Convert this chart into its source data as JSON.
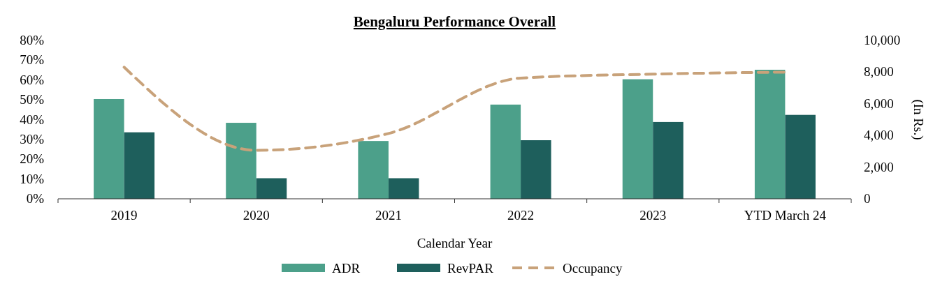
{
  "chart_data": {
    "type": "bar",
    "title": "Bengaluru Performance Overall",
    "xlabel": "Calendar Year",
    "y2label": "(In Rs.)",
    "categories": [
      "2019",
      "2020",
      "2021",
      "2022",
      "2023",
      "YTD March 24"
    ],
    "series": [
      {
        "name": "ADR",
        "color": "#4ca08a",
        "axis": "y2",
        "values": [
          6300,
          4800,
          3650,
          5950,
          7550,
          8150
        ]
      },
      {
        "name": "RevPAR",
        "color": "#1e5f5c",
        "axis": "y2",
        "values": [
          4200,
          1300,
          1300,
          3700,
          4850,
          5300
        ]
      },
      {
        "name": "Occupancy",
        "type": "line",
        "color": "#c8a27a",
        "line_style": "dashed",
        "values": [
          66.5,
          24.5,
          33,
          61,
          63,
          64
        ]
      }
    ],
    "ylim": [
      0,
      80
    ],
    "yticks": [
      {
        "value": 0,
        "label": "0%"
      },
      {
        "value": 10,
        "label": "10%"
      },
      {
        "value": 20,
        "label": "20%"
      },
      {
        "value": 30,
        "label": "30%"
      },
      {
        "value": 40,
        "label": "40%"
      },
      {
        "value": 50,
        "label": "50%"
      },
      {
        "value": 60,
        "label": "60%"
      },
      {
        "value": 70,
        "label": "70%"
      },
      {
        "value": 80,
        "label": "80%"
      }
    ],
    "y2lim": [
      0,
      10000
    ],
    "y2ticks": [
      0,
      {
        "value": 2000,
        "label": "2,000"
      },
      {
        "value": 4000,
        "label": "4,000"
      },
      {
        "value": 6000,
        "label": "6,000"
      },
      {
        "value": 8000,
        "label": "8,000"
      },
      {
        "value": 10000,
        "label": "10,000"
      }
    ],
    "legend": "bottom",
    "grid": false
  }
}
